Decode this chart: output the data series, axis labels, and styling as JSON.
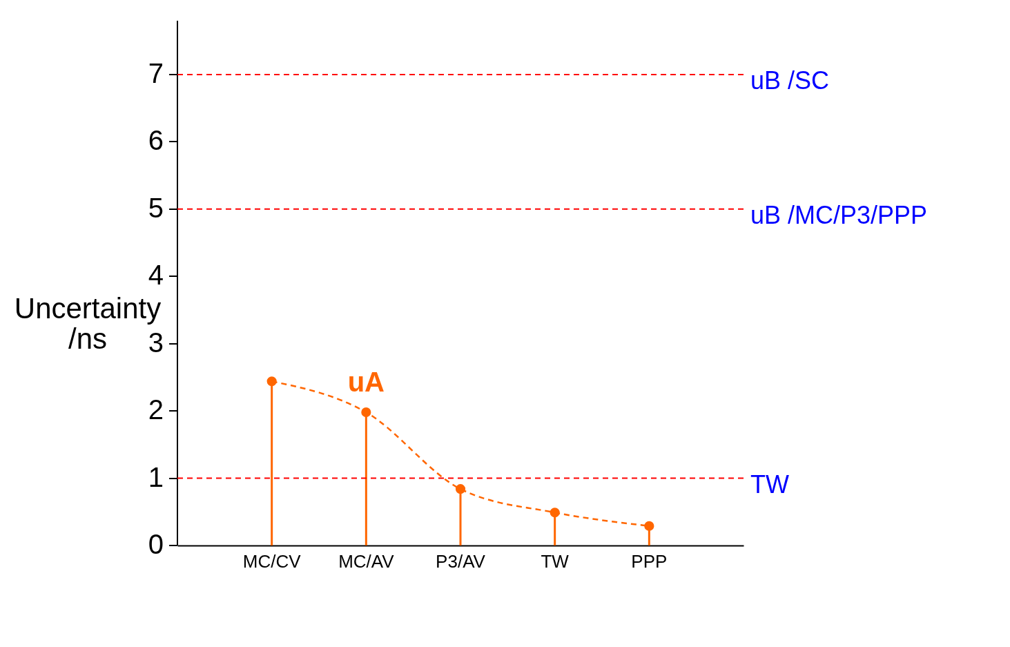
{
  "chart_data": {
    "type": "lollipop",
    "ylabel": "Uncertainty /ns",
    "categories": [
      "MC/CV",
      "MC/AV",
      "P3/AV",
      "TW",
      "PPP"
    ],
    "series": [
      {
        "name": "uA",
        "color": "#ff6600",
        "marker": "circle",
        "values": [
          2.44,
          1.98,
          0.84,
          0.49,
          0.29
        ]
      },
      {
        "type": "line",
        "color": "#ff6600",
        "values": [
          2.44,
          1.98,
          0.84,
          0.49,
          0.29
        ]
      }
    ],
    "ylim": [
      0,
      7.8
    ],
    "yticks": [
      0,
      1,
      2,
      3,
      4,
      5,
      6,
      7
    ],
    "grid": false,
    "legend": false,
    "line_style": "dashed",
    "ref_lines": [
      {
        "axis": "y",
        "value": 7,
        "label": "uB /SC",
        "color": "#ff0000",
        "line_style": "dashed"
      },
      {
        "axis": "y",
        "value": 5,
        "label": "uB /MC/P3/PPP",
        "color": "#ff0000",
        "line_style": "dashed"
      },
      {
        "axis": "y",
        "value": 1,
        "label": "TW",
        "color": "#ff0000",
        "line_style": "dashed"
      }
    ]
  }
}
